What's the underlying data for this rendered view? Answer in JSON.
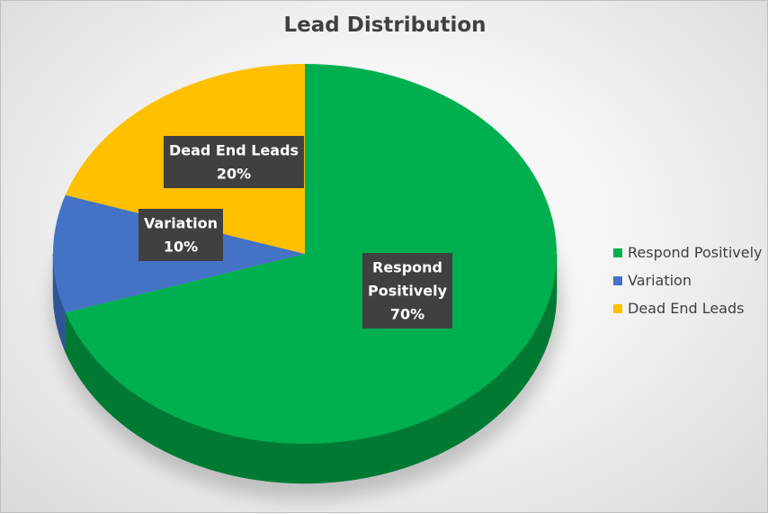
{
  "chart_data": {
    "type": "pie",
    "title": "Lead Distribution",
    "categories": [
      "Respond Positively",
      "Variation",
      "Dead End Leads"
    ],
    "values": [
      70,
      10,
      20
    ],
    "unit": "%",
    "data_labels": [
      {
        "lines": [
          "Respond",
          "Positively",
          "70%"
        ]
      },
      {
        "lines": [
          "Variation",
          "10%"
        ]
      },
      {
        "lines": [
          "Dead End Leads",
          "20%"
        ]
      }
    ],
    "colors": [
      "#00B050",
      "#4472C4",
      "#FFC000"
    ],
    "side_colors": [
      "#007A33",
      "#2F5597",
      "#BF8F00"
    ],
    "label_box_color": "#404040",
    "legend_placement": "right",
    "style": "3d-pie"
  }
}
